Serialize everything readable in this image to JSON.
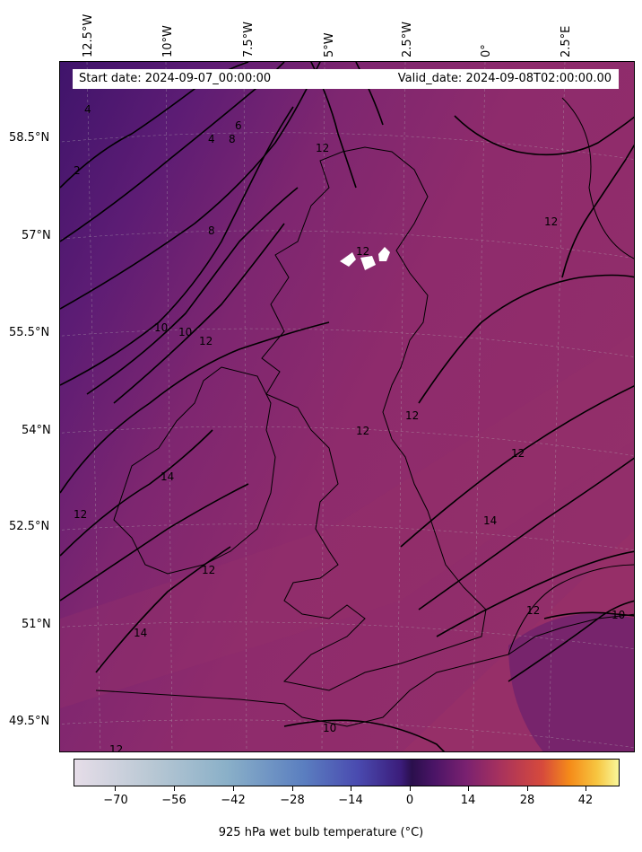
{
  "header": {
    "start_date": "Start date: 2024-09-07_00:00:00",
    "valid_date": "Valid_date: 2024-09-08T02:00:00.00"
  },
  "map": {
    "lat_labels": [
      "58.5°N",
      "57°N",
      "55.5°N",
      "54°N",
      "52.5°N",
      "51°N",
      "49.5°N"
    ],
    "lon_labels": [
      "12.5°W",
      "10°W",
      "7.5°W",
      "5°W",
      "2.5°W",
      "0°",
      "2.5°E"
    ],
    "contour_labels": [
      "4",
      "4",
      "2",
      "6",
      "8",
      "8",
      "12",
      "12",
      "10",
      "10",
      "12",
      "12",
      "12",
      "12",
      "14",
      "14",
      "12",
      "12",
      "12",
      "14",
      "12",
      "10",
      "12",
      "10"
    ],
    "missing_data_area": "white patches over the Scottish Highlands",
    "colors": {
      "background_field": "#8b2a6f",
      "cold_field": "#4a1570",
      "contour_line": "#000000"
    }
  },
  "colorbar": {
    "title": "925 hPa wet bulb temperature ($^\\circ$C)",
    "title_display": "925 hPa wet bulb temperature (°C)",
    "tick_labels": [
      "−70",
      "−56",
      "−42",
      "−28",
      "−14",
      "0",
      "14",
      "28",
      "42"
    ],
    "range": [
      -80,
      48
    ],
    "colormap": "icefire-like: light grey → blue → dark purple → red → orange → yellow"
  }
}
